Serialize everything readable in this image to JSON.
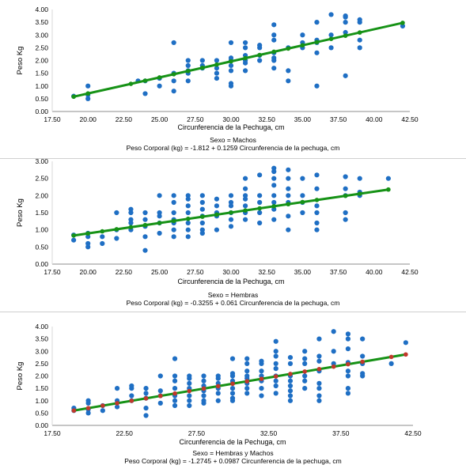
{
  "chart_data": [
    {
      "type": "scatter",
      "ylabel": "Peso Kg",
      "xlabel": "Circunferencia de la Pechuga, cm",
      "caption_line1": "Sexo = Machos",
      "caption_line2": "Peso Corporal (kg) = -1.812 + 0.1259 Circunferencia de la pechuga, cm",
      "xlim": [
        17.5,
        42.5
      ],
      "ylim": [
        0,
        4
      ],
      "xticks": [
        "17.50",
        "20.00",
        "22.50",
        "25.00",
        "27.50",
        "30.00",
        "32.50",
        "35.00",
        "37.50",
        "40.00",
        "42.50"
      ],
      "yticks": [
        "0.00",
        "0.50",
        "1.00",
        "1.50",
        "2.00",
        "2.50",
        "3.00",
        "3.50",
        "4.00"
      ],
      "regression": {
        "intercept": -1.812,
        "slope": 0.1259,
        "x_range": [
          19,
          42
        ]
      },
      "colors": {
        "points": "#1f6fc4",
        "line": "#169216",
        "line_markers": "#169216"
      },
      "line_marker_x": [
        19,
        20,
        23,
        24,
        25,
        26,
        27,
        28,
        29,
        30,
        31,
        32,
        33,
        34,
        35,
        36,
        37,
        38,
        39,
        42
      ],
      "points": [
        [
          19,
          0.6
        ],
        [
          20,
          0.5
        ],
        [
          20,
          0.65
        ],
        [
          20,
          1.0
        ],
        [
          23.5,
          1.2
        ],
        [
          24,
          0.7
        ],
        [
          24,
          1.2
        ],
        [
          25,
          1.0
        ],
        [
          25,
          1.3
        ],
        [
          26,
          0.8
        ],
        [
          26,
          1.2
        ],
        [
          26,
          1.5
        ],
        [
          26,
          2.7
        ],
        [
          27,
          1.5
        ],
        [
          27,
          1.6
        ],
        [
          27,
          1.8
        ],
        [
          27,
          2.0
        ],
        [
          27,
          1.2
        ],
        [
          28,
          1.8
        ],
        [
          28,
          2.0
        ],
        [
          28,
          1.7
        ],
        [
          29,
          1.7
        ],
        [
          29,
          2.0
        ],
        [
          29,
          1.5
        ],
        [
          29,
          1.3
        ],
        [
          30,
          1.0
        ],
        [
          30,
          1.1
        ],
        [
          30,
          1.6
        ],
        [
          30,
          1.8
        ],
        [
          30,
          2.0
        ],
        [
          30,
          2.1
        ],
        [
          30,
          2.7
        ],
        [
          31,
          1.9
        ],
        [
          31,
          2.0
        ],
        [
          31,
          2.2
        ],
        [
          31,
          2.5
        ],
        [
          31,
          2.7
        ],
        [
          31,
          1.6
        ],
        [
          32,
          2.0
        ],
        [
          32,
          2.2
        ],
        [
          32,
          2.5
        ],
        [
          32,
          2.6
        ],
        [
          33,
          2.0
        ],
        [
          33,
          2.1
        ],
        [
          33,
          2.3
        ],
        [
          33,
          2.8
        ],
        [
          33,
          3.0
        ],
        [
          33,
          3.4
        ],
        [
          33,
          1.7
        ],
        [
          34,
          1.2
        ],
        [
          34,
          1.6
        ],
        [
          34,
          2.5
        ],
        [
          35,
          2.5
        ],
        [
          35,
          2.7
        ],
        [
          35,
          3.0
        ],
        [
          36,
          1.0
        ],
        [
          36,
          2.3
        ],
        [
          36,
          2.7
        ],
        [
          36,
          2.8
        ],
        [
          36,
          3.5
        ],
        [
          37,
          2.5
        ],
        [
          37,
          3.0
        ],
        [
          37,
          3.8
        ],
        [
          38,
          1.4
        ],
        [
          38,
          3.1
        ],
        [
          38,
          3.5
        ],
        [
          38,
          3.7
        ],
        [
          38,
          3.75
        ],
        [
          39,
          2.5
        ],
        [
          39,
          2.8
        ],
        [
          39,
          3.5
        ],
        [
          39,
          3.6
        ],
        [
          42,
          3.35
        ]
      ]
    },
    {
      "type": "scatter",
      "ylabel": "Peso Kg",
      "xlabel": "Circunferencia de la Pechuga, cm",
      "caption_line1": "Sexo = Hembras",
      "caption_line2": "Peso Corporal (kg) = -0.3255 + 0.061 Circunferencia de la pechuga, cm",
      "xlim": [
        17.5,
        42.5
      ],
      "ylim": [
        0,
        3
      ],
      "xticks": [
        "17.50",
        "20.00",
        "22.50",
        "25.00",
        "27.50",
        "30.00",
        "32.50",
        "35.00",
        "37.50",
        "40.00",
        "42.50"
      ],
      "yticks": [
        "0.00",
        "0.50",
        "1.00",
        "1.50",
        "2.00",
        "2.50",
        "3.00"
      ],
      "regression": {
        "intercept": -0.3255,
        "slope": 0.061,
        "x_range": [
          19,
          41
        ]
      },
      "colors": {
        "points": "#1f6fc4",
        "line": "#169216",
        "line_markers": "#169216"
      },
      "line_marker_x": [
        19,
        20,
        21,
        22,
        23,
        24,
        25,
        26,
        27,
        28,
        29,
        30,
        31,
        32,
        33,
        34,
        35,
        36,
        38,
        39,
        41
      ],
      "points": [
        [
          19,
          0.7
        ],
        [
          19,
          0.85
        ],
        [
          20,
          0.5
        ],
        [
          20,
          0.6
        ],
        [
          20,
          0.8
        ],
        [
          20,
          0.9
        ],
        [
          21,
          0.6
        ],
        [
          21,
          0.8
        ],
        [
          22,
          0.75
        ],
        [
          22,
          1.0
        ],
        [
          22,
          1.5
        ],
        [
          23,
          1.0
        ],
        [
          23,
          1.2
        ],
        [
          23,
          1.3
        ],
        [
          23,
          1.5
        ],
        [
          23,
          1.6
        ],
        [
          24,
          0.4
        ],
        [
          24,
          0.8
        ],
        [
          24,
          1.1
        ],
        [
          24,
          1.3
        ],
        [
          24,
          1.5
        ],
        [
          25,
          0.9
        ],
        [
          25,
          1.2
        ],
        [
          25,
          1.4
        ],
        [
          25,
          1.5
        ],
        [
          25,
          2.0
        ],
        [
          26,
          0.8
        ],
        [
          26,
          1.0
        ],
        [
          26,
          1.2
        ],
        [
          26,
          1.3
        ],
        [
          26,
          1.5
        ],
        [
          26,
          1.8
        ],
        [
          26,
          2.0
        ],
        [
          27,
          0.8
        ],
        [
          27,
          1.0
        ],
        [
          27,
          1.2
        ],
        [
          27,
          1.5
        ],
        [
          27,
          1.7
        ],
        [
          27,
          1.9
        ],
        [
          27,
          2.0
        ],
        [
          28,
          0.9
        ],
        [
          28,
          1.0
        ],
        [
          28,
          1.2
        ],
        [
          28,
          1.4
        ],
        [
          28,
          1.6
        ],
        [
          28,
          1.8
        ],
        [
          28,
          2.0
        ],
        [
          29,
          1.0
        ],
        [
          29,
          1.4
        ],
        [
          29,
          1.5
        ],
        [
          29,
          1.7
        ],
        [
          29,
          1.9
        ],
        [
          30,
          1.1
        ],
        [
          30,
          1.3
        ],
        [
          30,
          1.5
        ],
        [
          30,
          1.7
        ],
        [
          30,
          1.8
        ],
        [
          30,
          2.0
        ],
        [
          31,
          1.3
        ],
        [
          31,
          1.5
        ],
        [
          31,
          1.7
        ],
        [
          31,
          1.9
        ],
        [
          31,
          2.0
        ],
        [
          31,
          2.2
        ],
        [
          31,
          2.5
        ],
        [
          32,
          1.2
        ],
        [
          32,
          1.5
        ],
        [
          32,
          1.8
        ],
        [
          32,
          2.0
        ],
        [
          32,
          2.6
        ],
        [
          33,
          1.3
        ],
        [
          33,
          1.6
        ],
        [
          33,
          1.8
        ],
        [
          33,
          2.0
        ],
        [
          33,
          2.3
        ],
        [
          33,
          2.5
        ],
        [
          33,
          2.7
        ],
        [
          33,
          2.8
        ],
        [
          34,
          1.0
        ],
        [
          34,
          1.4
        ],
        [
          34,
          1.8
        ],
        [
          34,
          2.0
        ],
        [
          34,
          2.2
        ],
        [
          34,
          2.5
        ],
        [
          34,
          2.75
        ],
        [
          35,
          1.5
        ],
        [
          35,
          1.8
        ],
        [
          35,
          2.0
        ],
        [
          35,
          2.5
        ],
        [
          36,
          1.0
        ],
        [
          36,
          1.2
        ],
        [
          36,
          1.5
        ],
        [
          36,
          1.7
        ],
        [
          36,
          2.2
        ],
        [
          36,
          2.6
        ],
        [
          38,
          1.3
        ],
        [
          38,
          1.5
        ],
        [
          38,
          2.0
        ],
        [
          38,
          2.2
        ],
        [
          38,
          2.55
        ],
        [
          39,
          2.0
        ],
        [
          39,
          2.1
        ],
        [
          39,
          2.5
        ],
        [
          41,
          2.5
        ]
      ]
    },
    {
      "type": "scatter",
      "ylabel": "Peso Kg",
      "xlabel": "Circunferencia de la Pechuga, cm",
      "caption_line1": "Sexo = Hembras y Machos",
      "caption_line2": "Peso Corporal (kg) = -1.2745 + 0.0987 Circunferencia de la pechuga, cm",
      "xlim": [
        17.5,
        42.5
      ],
      "ylim": [
        0,
        4
      ],
      "xticks": [
        "17.50",
        "22.50",
        "27.50",
        "32.50",
        "37.50",
        "42.50"
      ],
      "yticks": [
        "0.00",
        "0.50",
        "1.00",
        "1.50",
        "2.00",
        "2.50",
        "3.00",
        "3.50",
        "4.00"
      ],
      "regression": {
        "intercept": -1.2745,
        "slope": 0.0987,
        "x_range": [
          19,
          42
        ]
      },
      "colors": {
        "points": "#1f6fc4",
        "line": "#169216",
        "line_markers": "#c0392b"
      },
      "line_marker_x": [
        19,
        20,
        21,
        22,
        23,
        24,
        25,
        26,
        27,
        28,
        29,
        30,
        31,
        32,
        33,
        34,
        35,
        36,
        37,
        38,
        39,
        41,
        42
      ],
      "points": [
        [
          19,
          0.6
        ],
        [
          19,
          0.7
        ],
        [
          20,
          0.5
        ],
        [
          20,
          0.65
        ],
        [
          20,
          0.9
        ],
        [
          20,
          1.0
        ],
        [
          21,
          0.6
        ],
        [
          21,
          0.8
        ],
        [
          22,
          0.75
        ],
        [
          22,
          1.0
        ],
        [
          22,
          1.5
        ],
        [
          23,
          1.0
        ],
        [
          23,
          1.2
        ],
        [
          23,
          1.5
        ],
        [
          23,
          1.6
        ],
        [
          24,
          0.4
        ],
        [
          24,
          0.7
        ],
        [
          24,
          1.1
        ],
        [
          24,
          1.3
        ],
        [
          24,
          1.5
        ],
        [
          25,
          0.9
        ],
        [
          25,
          1.2
        ],
        [
          25,
          1.4
        ],
        [
          25,
          2.0
        ],
        [
          26,
          0.8
        ],
        [
          26,
          1.0
        ],
        [
          26,
          1.2
        ],
        [
          26,
          1.5
        ],
        [
          26,
          1.8
        ],
        [
          26,
          2.0
        ],
        [
          26,
          2.7
        ],
        [
          27,
          0.8
        ],
        [
          27,
          1.0
        ],
        [
          27,
          1.2
        ],
        [
          27,
          1.5
        ],
        [
          27,
          1.7
        ],
        [
          27,
          1.9
        ],
        [
          27,
          2.0
        ],
        [
          28,
          0.9
        ],
        [
          28,
          1.0
        ],
        [
          28,
          1.2
        ],
        [
          28,
          1.4
        ],
        [
          28,
          1.6
        ],
        [
          28,
          1.8
        ],
        [
          28,
          2.0
        ],
        [
          29,
          1.0
        ],
        [
          29,
          1.3
        ],
        [
          29,
          1.5
        ],
        [
          29,
          1.7
        ],
        [
          29,
          1.9
        ],
        [
          29,
          2.0
        ],
        [
          30,
          1.0
        ],
        [
          30,
          1.1
        ],
        [
          30,
          1.3
        ],
        [
          30,
          1.5
        ],
        [
          30,
          1.7
        ],
        [
          30,
          1.8
        ],
        [
          30,
          2.0
        ],
        [
          30,
          2.1
        ],
        [
          30,
          2.7
        ],
        [
          31,
          1.3
        ],
        [
          31,
          1.5
        ],
        [
          31,
          1.7
        ],
        [
          31,
          1.9
        ],
        [
          31,
          2.0
        ],
        [
          31,
          2.2
        ],
        [
          31,
          2.5
        ],
        [
          31,
          2.7
        ],
        [
          32,
          1.2
        ],
        [
          32,
          1.5
        ],
        [
          32,
          1.8
        ],
        [
          32,
          2.0
        ],
        [
          32,
          2.2
        ],
        [
          32,
          2.5
        ],
        [
          32,
          2.6
        ],
        [
          33,
          1.3
        ],
        [
          33,
          1.6
        ],
        [
          33,
          1.8
        ],
        [
          33,
          2.0
        ],
        [
          33,
          2.3
        ],
        [
          33,
          2.5
        ],
        [
          33,
          2.8
        ],
        [
          33,
          3.0
        ],
        [
          33,
          3.4
        ],
        [
          34,
          1.0
        ],
        [
          34,
          1.2
        ],
        [
          34,
          1.4
        ],
        [
          34,
          1.6
        ],
        [
          34,
          1.8
        ],
        [
          34,
          2.0
        ],
        [
          34,
          2.5
        ],
        [
          34,
          2.75
        ],
        [
          35,
          1.5
        ],
        [
          35,
          1.8
        ],
        [
          35,
          2.0
        ],
        [
          35,
          2.5
        ],
        [
          35,
          2.7
        ],
        [
          35,
          3.0
        ],
        [
          36,
          1.0
        ],
        [
          36,
          1.2
        ],
        [
          36,
          1.5
        ],
        [
          36,
          1.7
        ],
        [
          36,
          2.2
        ],
        [
          36,
          2.6
        ],
        [
          36,
          2.8
        ],
        [
          36,
          3.5
        ],
        [
          37,
          2.5
        ],
        [
          37,
          3.0
        ],
        [
          37,
          3.8
        ],
        [
          38,
          1.3
        ],
        [
          38,
          1.5
        ],
        [
          38,
          2.0
        ],
        [
          38,
          2.2
        ],
        [
          38,
          2.55
        ],
        [
          38,
          3.1
        ],
        [
          38,
          3.5
        ],
        [
          38,
          3.7
        ],
        [
          39,
          2.0
        ],
        [
          39,
          2.1
        ],
        [
          39,
          2.5
        ],
        [
          39,
          2.8
        ],
        [
          39,
          3.5
        ],
        [
          41,
          2.5
        ],
        [
          42,
          3.35
        ]
      ]
    }
  ]
}
